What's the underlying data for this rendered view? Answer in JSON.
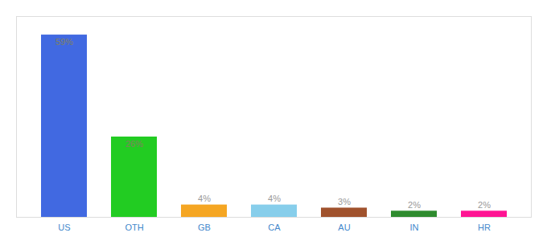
{
  "chart_data": {
    "type": "bar",
    "categories": [
      "US",
      "OTH",
      "GB",
      "CA",
      "AU",
      "IN",
      "HR"
    ],
    "values": [
      59,
      26,
      4,
      4,
      3,
      2,
      2
    ],
    "value_labels": [
      "59%",
      "26%",
      "4%",
      "4%",
      "3%",
      "2%",
      "2%"
    ],
    "colors": [
      "#4169e1",
      "#22cc22",
      "#f5a623",
      "#87ceeb",
      "#a0522d",
      "#2e8b2e",
      "#ff1493"
    ],
    "ylim": [
      0,
      65
    ],
    "data_labels": true,
    "tick_labels": "x",
    "grid": false
  }
}
